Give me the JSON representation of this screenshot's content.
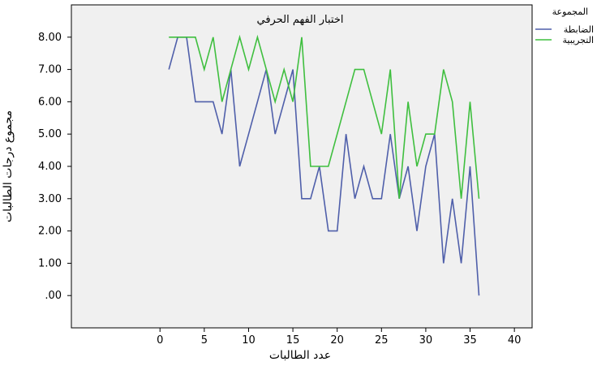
{
  "chart_data": {
    "type": "line",
    "title": "اختبار الفهم الحرفي",
    "xlabel": "عدد الطالبات",
    "ylabel": "مجموع درجات الطالبات",
    "xlim": [
      -10,
      42
    ],
    "ylim": [
      -1,
      9
    ],
    "x_ticks": [
      0,
      5,
      10,
      15,
      20,
      25,
      30,
      35,
      40
    ],
    "y_ticks": [
      0,
      1,
      2,
      3,
      4,
      5,
      6,
      7,
      8
    ],
    "y_tick_labels": [
      ".00",
      "1.00",
      "2.00",
      "3.00",
      "4.00",
      "5.00",
      "6.00",
      "7.00",
      "8.00"
    ],
    "legend": {
      "title": "المجموعة",
      "position": "top-right"
    },
    "grid": false,
    "plot_background": "#f0f0f0",
    "series": [
      {
        "name": "الضابطة",
        "color": "#4f5faa",
        "x": [
          1,
          2,
          3,
          4,
          5,
          6,
          7,
          8,
          9,
          10,
          11,
          12,
          13,
          14,
          15,
          16,
          17,
          18,
          19,
          20,
          21,
          22,
          23,
          24,
          25,
          26,
          27,
          28,
          29,
          30,
          31,
          32,
          33,
          34,
          35,
          36
        ],
        "values": [
          7,
          8,
          8,
          6,
          6,
          6,
          5,
          7,
          4,
          5,
          6,
          7,
          5,
          6,
          7,
          3,
          3,
          4,
          2,
          2,
          5,
          3,
          4,
          3,
          3,
          5,
          3,
          4,
          2,
          4,
          5,
          1,
          3,
          1,
          4,
          0
        ]
      },
      {
        "name": "التجريبية",
        "color": "#3fbf3f",
        "x": [
          1,
          2,
          3,
          4,
          5,
          6,
          7,
          8,
          9,
          10,
          11,
          12,
          13,
          14,
          15,
          16,
          17,
          18,
          19,
          20,
          21,
          22,
          23,
          24,
          25,
          26,
          27,
          28,
          29,
          30,
          31,
          32,
          33,
          34,
          35,
          36
        ],
        "values": [
          8,
          8,
          8,
          8,
          7,
          8,
          6,
          7,
          8,
          7,
          8,
          7,
          6,
          7,
          6,
          8,
          4,
          4,
          4,
          5,
          6,
          7,
          7,
          6,
          5,
          7,
          3,
          6,
          4,
          5,
          5,
          7,
          6,
          3,
          6,
          3
        ]
      }
    ]
  }
}
